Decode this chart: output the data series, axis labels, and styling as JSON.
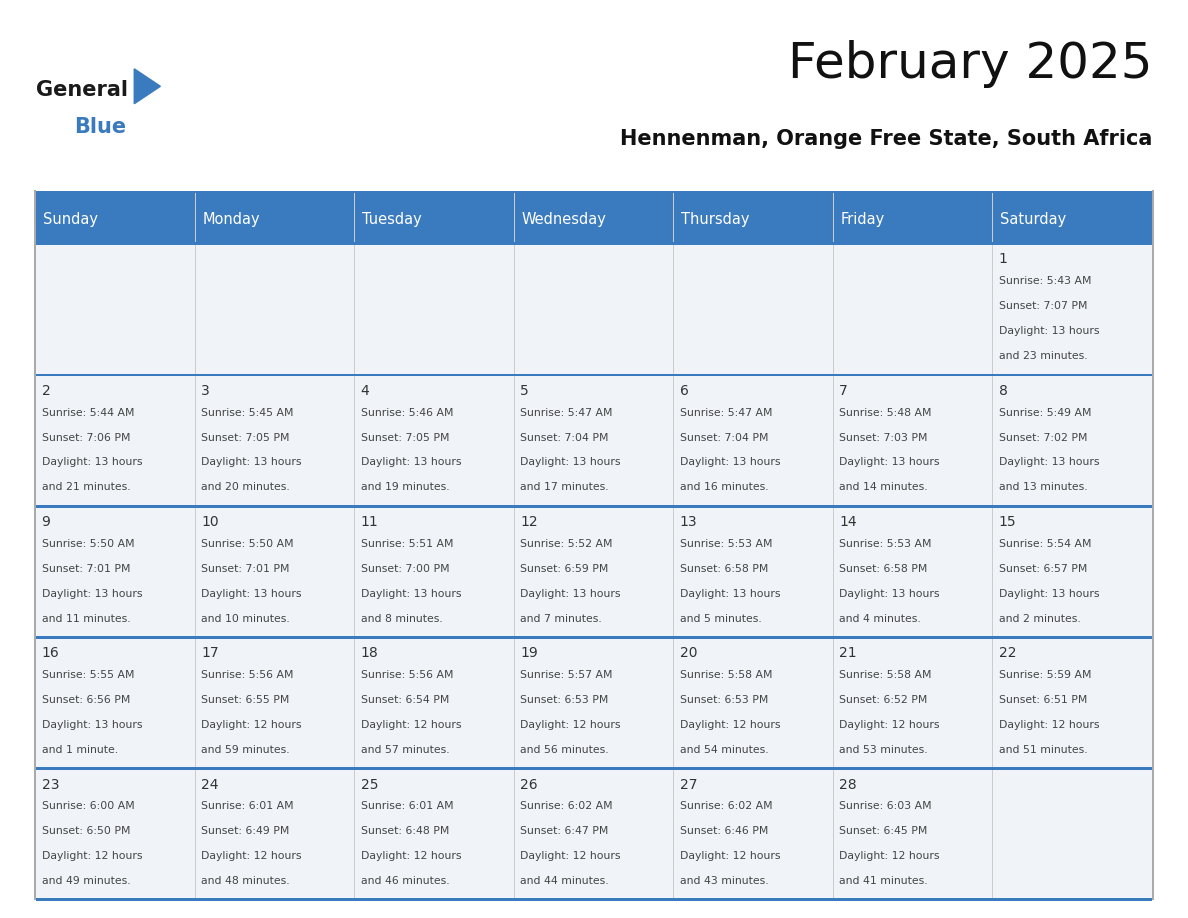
{
  "title": "February 2025",
  "subtitle": "Hennenman, Orange Free State, South Africa",
  "header_bg": "#3a7abf",
  "header_text_color": "#ffffff",
  "cell_bg": "#f0f4f8",
  "day_headers": [
    "Sunday",
    "Monday",
    "Tuesday",
    "Wednesday",
    "Thursday",
    "Friday",
    "Saturday"
  ],
  "calendar": [
    [
      null,
      null,
      null,
      null,
      null,
      null,
      {
        "day": "1",
        "sunrise": "5:43 AM",
        "sunset": "7:07 PM",
        "daylight": "13 hours",
        "daylight2": "and 23 minutes."
      }
    ],
    [
      {
        "day": "2",
        "sunrise": "5:44 AM",
        "sunset": "7:06 PM",
        "daylight": "13 hours",
        "daylight2": "and 21 minutes."
      },
      {
        "day": "3",
        "sunrise": "5:45 AM",
        "sunset": "7:05 PM",
        "daylight": "13 hours",
        "daylight2": "and 20 minutes."
      },
      {
        "day": "4",
        "sunrise": "5:46 AM",
        "sunset": "7:05 PM",
        "daylight": "13 hours",
        "daylight2": "and 19 minutes."
      },
      {
        "day": "5",
        "sunrise": "5:47 AM",
        "sunset": "7:04 PM",
        "daylight": "13 hours",
        "daylight2": "and 17 minutes."
      },
      {
        "day": "6",
        "sunrise": "5:47 AM",
        "sunset": "7:04 PM",
        "daylight": "13 hours",
        "daylight2": "and 16 minutes."
      },
      {
        "day": "7",
        "sunrise": "5:48 AM",
        "sunset": "7:03 PM",
        "daylight": "13 hours",
        "daylight2": "and 14 minutes."
      },
      {
        "day": "8",
        "sunrise": "5:49 AM",
        "sunset": "7:02 PM",
        "daylight": "13 hours",
        "daylight2": "and 13 minutes."
      }
    ],
    [
      {
        "day": "9",
        "sunrise": "5:50 AM",
        "sunset": "7:01 PM",
        "daylight": "13 hours",
        "daylight2": "and 11 minutes."
      },
      {
        "day": "10",
        "sunrise": "5:50 AM",
        "sunset": "7:01 PM",
        "daylight": "13 hours",
        "daylight2": "and 10 minutes."
      },
      {
        "day": "11",
        "sunrise": "5:51 AM",
        "sunset": "7:00 PM",
        "daylight": "13 hours",
        "daylight2": "and 8 minutes."
      },
      {
        "day": "12",
        "sunrise": "5:52 AM",
        "sunset": "6:59 PM",
        "daylight": "13 hours",
        "daylight2": "and 7 minutes."
      },
      {
        "day": "13",
        "sunrise": "5:53 AM",
        "sunset": "6:58 PM",
        "daylight": "13 hours",
        "daylight2": "and 5 minutes."
      },
      {
        "day": "14",
        "sunrise": "5:53 AM",
        "sunset": "6:58 PM",
        "daylight": "13 hours",
        "daylight2": "and 4 minutes."
      },
      {
        "day": "15",
        "sunrise": "5:54 AM",
        "sunset": "6:57 PM",
        "daylight": "13 hours",
        "daylight2": "and 2 minutes."
      }
    ],
    [
      {
        "day": "16",
        "sunrise": "5:55 AM",
        "sunset": "6:56 PM",
        "daylight": "13 hours",
        "daylight2": "and 1 minute."
      },
      {
        "day": "17",
        "sunrise": "5:56 AM",
        "sunset": "6:55 PM",
        "daylight": "12 hours",
        "daylight2": "and 59 minutes."
      },
      {
        "day": "18",
        "sunrise": "5:56 AM",
        "sunset": "6:54 PM",
        "daylight": "12 hours",
        "daylight2": "and 57 minutes."
      },
      {
        "day": "19",
        "sunrise": "5:57 AM",
        "sunset": "6:53 PM",
        "daylight": "12 hours",
        "daylight2": "and 56 minutes."
      },
      {
        "day": "20",
        "sunrise": "5:58 AM",
        "sunset": "6:53 PM",
        "daylight": "12 hours",
        "daylight2": "and 54 minutes."
      },
      {
        "day": "21",
        "sunrise": "5:58 AM",
        "sunset": "6:52 PM",
        "daylight": "12 hours",
        "daylight2": "and 53 minutes."
      },
      {
        "day": "22",
        "sunrise": "5:59 AM",
        "sunset": "6:51 PM",
        "daylight": "12 hours",
        "daylight2": "and 51 minutes."
      }
    ],
    [
      {
        "day": "23",
        "sunrise": "6:00 AM",
        "sunset": "6:50 PM",
        "daylight": "12 hours",
        "daylight2": "and 49 minutes."
      },
      {
        "day": "24",
        "sunrise": "6:01 AM",
        "sunset": "6:49 PM",
        "daylight": "12 hours",
        "daylight2": "and 48 minutes."
      },
      {
        "day": "25",
        "sunrise": "6:01 AM",
        "sunset": "6:48 PM",
        "daylight": "12 hours",
        "daylight2": "and 46 minutes."
      },
      {
        "day": "26",
        "sunrise": "6:02 AM",
        "sunset": "6:47 PM",
        "daylight": "12 hours",
        "daylight2": "and 44 minutes."
      },
      {
        "day": "27",
        "sunrise": "6:02 AM",
        "sunset": "6:46 PM",
        "daylight": "12 hours",
        "daylight2": "and 43 minutes."
      },
      {
        "day": "28",
        "sunrise": "6:03 AM",
        "sunset": "6:45 PM",
        "daylight": "12 hours",
        "daylight2": "and 41 minutes."
      },
      null
    ]
  ],
  "logo_text1": "General",
  "logo_text2": "Blue",
  "logo_color1": "#1a1a1a",
  "logo_color2": "#3a7abf",
  "logo_triangle_color": "#3a7abf",
  "title_fontsize": 36,
  "subtitle_fontsize": 15,
  "header_fontsize": 10.5,
  "day_num_fontsize": 10,
  "cell_text_fontsize": 7.8
}
